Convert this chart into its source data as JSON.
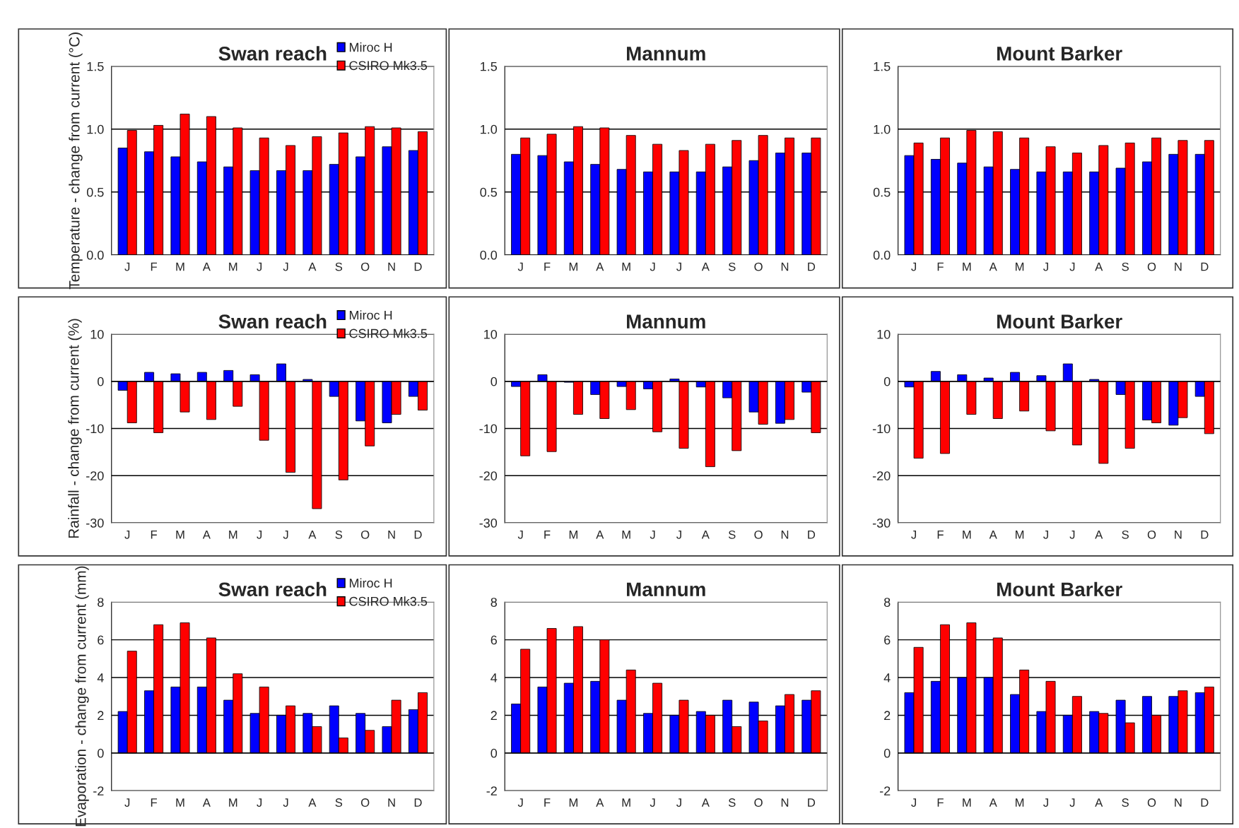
{
  "chart_data": [
    {
      "type": "bar",
      "title": "Swan reach",
      "ylabel": "Temperature - change from current (°C)",
      "categories": [
        "J",
        "F",
        "M",
        "A",
        "M",
        "J",
        "J",
        "A",
        "S",
        "O",
        "N",
        "D"
      ],
      "ylim": [
        0,
        1.5
      ],
      "yticks": [
        {
          "value": 0,
          "label": "0.0"
        },
        {
          "value": 0.5,
          "label": "0.5"
        },
        {
          "value": 1,
          "label": "1.0"
        },
        {
          "value": 1.5,
          "label": "1.5"
        }
      ],
      "grid": "y",
      "legend": "top right",
      "series": [
        {
          "name": "Miroc H",
          "color": "#0000ff",
          "values": [
            0.85,
            0.82,
            0.78,
            0.74,
            0.7,
            0.67,
            0.67,
            0.67,
            0.72,
            0.78,
            0.86,
            0.83
          ]
        },
        {
          "name": "CSIRO Mk3.5",
          "color": "#ff0000",
          "values": [
            0.99,
            1.03,
            1.12,
            1.1,
            1.01,
            0.93,
            0.87,
            0.94,
            0.97,
            1.02,
            1.01,
            0.98
          ]
        }
      ]
    },
    {
      "type": "bar",
      "title": "Mannum",
      "categories": [
        "J",
        "F",
        "M",
        "A",
        "M",
        "J",
        "J",
        "A",
        "S",
        "O",
        "N",
        "D"
      ],
      "ylim": [
        0,
        1.5
      ],
      "yticks": [
        {
          "value": 0,
          "label": "0.0"
        },
        {
          "value": 0.5,
          "label": "0.5"
        },
        {
          "value": 1,
          "label": "1.0"
        },
        {
          "value": 1.5,
          "label": "1.5"
        }
      ],
      "grid": "y",
      "series": [
        {
          "color": "#0000ff",
          "values": [
            0.8,
            0.79,
            0.74,
            0.72,
            0.68,
            0.66,
            0.66,
            0.66,
            0.7,
            0.75,
            0.81,
            0.81
          ]
        },
        {
          "color": "#ff0000",
          "values": [
            0.93,
            0.96,
            1.02,
            1.01,
            0.95,
            0.88,
            0.83,
            0.88,
            0.91,
            0.95,
            0.93,
            0.93
          ]
        }
      ]
    },
    {
      "type": "bar",
      "title": "Mount Barker",
      "categories": [
        "J",
        "F",
        "M",
        "A",
        "M",
        "J",
        "J",
        "A",
        "S",
        "O",
        "N",
        "D"
      ],
      "ylim": [
        0,
        1.5
      ],
      "yticks": [
        {
          "value": 0,
          "label": "0.0"
        },
        {
          "value": 0.5,
          "label": "0.5"
        },
        {
          "value": 1,
          "label": "1.0"
        },
        {
          "value": 1.5,
          "label": "1.5"
        }
      ],
      "grid": "y",
      "series": [
        {
          "color": "#0000ff",
          "values": [
            0.79,
            0.76,
            0.73,
            0.7,
            0.68,
            0.66,
            0.66,
            0.66,
            0.69,
            0.74,
            0.8,
            0.8
          ]
        },
        {
          "color": "#ff0000",
          "values": [
            0.89,
            0.93,
            0.99,
            0.98,
            0.93,
            0.86,
            0.81,
            0.87,
            0.89,
            0.93,
            0.91,
            0.91
          ]
        }
      ]
    },
    {
      "type": "bar",
      "title": "Swan reach",
      "ylabel": "Rainfall - change from current (%)",
      "categories": [
        "J",
        "F",
        "M",
        "A",
        "M",
        "J",
        "J",
        "A",
        "S",
        "O",
        "N",
        "D"
      ],
      "ylim": [
        -30,
        10
      ],
      "yticks": [
        -30,
        -20,
        -10,
        0,
        10
      ],
      "grid": "y",
      "legend": "top right",
      "series": [
        {
          "name": "Miroc H",
          "color": "#0000ff",
          "values": [
            -1.9,
            1.9,
            1.6,
            1.9,
            2.3,
            1.4,
            3.7,
            0.4,
            -3.2,
            -8.4,
            -8.8,
            -3.2
          ]
        },
        {
          "name": "CSIRO Mk3.5",
          "color": "#ff0000",
          "values": [
            -8.8,
            -10.9,
            -6.5,
            -8.1,
            -5.3,
            -12.5,
            -19.3,
            -27,
            -20.9,
            -13.7,
            -7.0,
            -6.1
          ]
        }
      ]
    },
    {
      "type": "bar",
      "title": "Mannum",
      "categories": [
        "J",
        "F",
        "M",
        "A",
        "M",
        "J",
        "J",
        "A",
        "S",
        "O",
        "N",
        "D"
      ],
      "ylim": [
        -30,
        10
      ],
      "yticks": [
        -30,
        -20,
        -10,
        0,
        10
      ],
      "grid": "y",
      "series": [
        {
          "color": "#0000ff",
          "values": [
            -1.1,
            1.4,
            -0.2,
            -2.8,
            -1.1,
            -1.6,
            0.5,
            -1.2,
            -3.5,
            -6.5,
            -8.9,
            -2.3
          ]
        },
        {
          "color": "#ff0000",
          "values": [
            -15.8,
            -14.9,
            -7.0,
            -7.9,
            -6.0,
            -10.7,
            -14.2,
            -18.1,
            -14.7,
            -9.1,
            -8.1,
            -10.9
          ]
        }
      ]
    },
    {
      "type": "bar",
      "title": "Mount Barker",
      "categories": [
        "J",
        "F",
        "M",
        "A",
        "M",
        "J",
        "J",
        "A",
        "S",
        "O",
        "N",
        "D"
      ],
      "ylim": [
        -30,
        10
      ],
      "yticks": [
        -30,
        -20,
        -10,
        0,
        10
      ],
      "grid": "y",
      "series": [
        {
          "color": "#0000ff",
          "values": [
            -1.2,
            2.1,
            1.4,
            0.7,
            1.9,
            1.2,
            3.7,
            0.4,
            -2.8,
            -8.2,
            -9.3,
            -3.2
          ]
        },
        {
          "color": "#ff0000",
          "values": [
            -16.3,
            -15.3,
            -7.0,
            -7.9,
            -6.3,
            -10.5,
            -13.5,
            -17.4,
            -14.2,
            -8.8,
            -7.7,
            -11.1
          ]
        }
      ]
    },
    {
      "type": "bar",
      "title": "Swan reach",
      "ylabel": "Evaporation - change from current (mm)",
      "categories": [
        "J",
        "F",
        "M",
        "A",
        "M",
        "J",
        "J",
        "A",
        "S",
        "O",
        "N",
        "D"
      ],
      "ylim": [
        -2,
        8
      ],
      "yticks": [
        -2,
        0,
        2,
        4,
        6,
        8
      ],
      "grid": "y",
      "legend": "top right",
      "series": [
        {
          "name": "Miroc H",
          "color": "#0000ff",
          "values": [
            2.2,
            3.3,
            3.5,
            3.5,
            2.8,
            2.1,
            2.0,
            2.1,
            2.5,
            2.1,
            1.4,
            2.3
          ]
        },
        {
          "name": "CSIRO Mk3.5",
          "color": "#ff0000",
          "values": [
            5.4,
            6.8,
            6.9,
            6.1,
            4.2,
            3.5,
            2.5,
            1.4,
            0.8,
            1.2,
            2.8,
            3.2
          ]
        }
      ]
    },
    {
      "type": "bar",
      "title": "Mannum",
      "categories": [
        "J",
        "F",
        "M",
        "A",
        "M",
        "J",
        "J",
        "A",
        "S",
        "O",
        "N",
        "D"
      ],
      "ylim": [
        -2,
        8
      ],
      "yticks": [
        -2,
        0,
        2,
        4,
        6,
        8
      ],
      "grid": "y",
      "series": [
        {
          "color": "#0000ff",
          "values": [
            2.6,
            3.5,
            3.7,
            3.8,
            2.8,
            2.1,
            2.0,
            2.2,
            2.8,
            2.7,
            2.5,
            2.8
          ]
        },
        {
          "color": "#ff0000",
          "values": [
            5.5,
            6.6,
            6.7,
            6.0,
            4.4,
            3.7,
            2.8,
            2.0,
            1.4,
            1.7,
            3.1,
            3.3
          ]
        }
      ]
    },
    {
      "type": "bar",
      "title": "Mount Barker",
      "categories": [
        "J",
        "F",
        "M",
        "A",
        "M",
        "J",
        "J",
        "A",
        "S",
        "O",
        "N",
        "D"
      ],
      "ylim": [
        -2,
        8
      ],
      "yticks": [
        -2,
        0,
        2,
        4,
        6,
        8
      ],
      "grid": "y",
      "series": [
        {
          "color": "#0000ff",
          "values": [
            3.2,
            3.8,
            4.0,
            4.0,
            3.1,
            2.2,
            2.0,
            2.2,
            2.8,
            3.0,
            3.0,
            3.2
          ]
        },
        {
          "color": "#ff0000",
          "values": [
            5.6,
            6.8,
            6.9,
            6.1,
            4.4,
            3.8,
            3.0,
            2.1,
            1.6,
            2.0,
            3.3,
            3.5
          ]
        }
      ]
    }
  ]
}
